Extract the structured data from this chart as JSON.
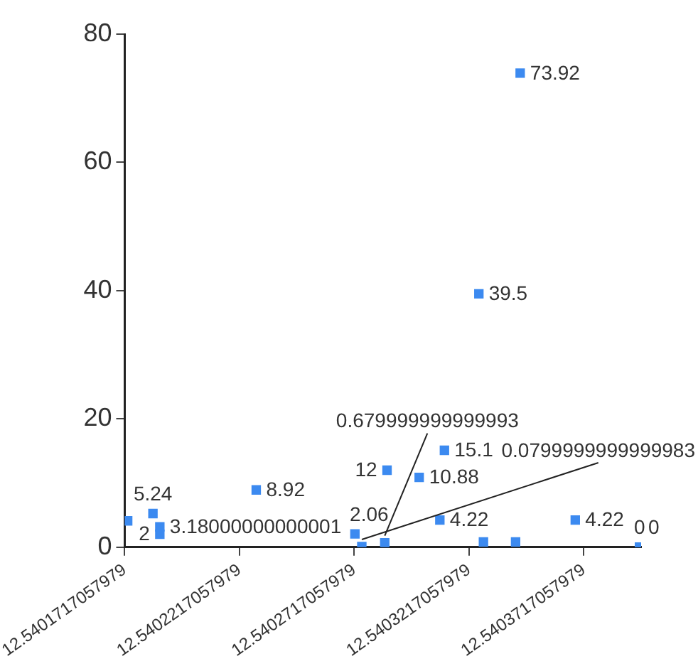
{
  "chart_data": {
    "type": "scatter",
    "marker": "square",
    "grid": false,
    "legend": false,
    "x": [
      12.540173,
      12.540184,
      12.540187,
      12.540187,
      12.540229,
      12.540272,
      12.540275,
      12.540285,
      12.540286,
      12.5403,
      12.540311,
      12.540309,
      12.540326,
      12.540328,
      12.540342,
      12.540344,
      12.540368,
      12.540396,
      12.540396
    ],
    "series": [
      {
        "color": "#3c8af0",
        "values": [
          4.1,
          5.24,
          3.18,
          2,
          8.92,
          2.06,
          0.08,
          0.68,
          12,
          10.88,
          15.1,
          4.22,
          39.5,
          0.8,
          0.8,
          73.92,
          4.22,
          0,
          0
        ],
        "value_labels": [
          null,
          "5.24",
          "3.18000000000001",
          "2",
          "8.92",
          "2.06",
          "0.0799999999999983",
          "0.679999999999993",
          "12",
          "10.88",
          "15.1",
          "4.22",
          "39.5",
          null,
          null,
          "73.92",
          "4.22",
          "0",
          "0"
        ]
      }
    ],
    "xlim": [
      12.5401717057979,
      12.5403967
    ],
    "xticks": [
      12.5401717057979,
      12.5402217057979,
      12.5402717057979,
      12.5403217057979,
      12.5403717057979
    ],
    "ylim": [
      0,
      80
    ],
    "yticks": [
      0,
      20,
      40,
      60,
      80
    ]
  }
}
